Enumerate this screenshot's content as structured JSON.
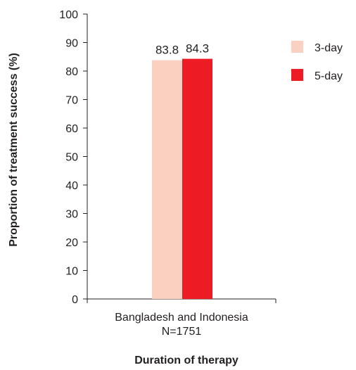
{
  "chart_data": {
    "type": "bar",
    "categories": [
      "Bangladesh and Indonesia N=1751"
    ],
    "category_lines": [
      "Bangladesh and Indonesia",
      "N=1751"
    ],
    "series": [
      {
        "name": "3-day",
        "values": [
          83.8
        ],
        "color": "#fad1c0"
      },
      {
        "name": "5-day",
        "values": [
          84.3
        ],
        "color": "#ed1c24"
      }
    ],
    "data_labels": [
      "83.8",
      "84.3"
    ],
    "xlabel": "Duration of therapy",
    "ylabel": "Proportion of treatment success (%)",
    "ylim": [
      0,
      100
    ],
    "yticks": [
      0,
      10,
      20,
      30,
      40,
      50,
      60,
      70,
      80,
      90,
      100
    ],
    "grid": false,
    "legend_position": "right"
  }
}
